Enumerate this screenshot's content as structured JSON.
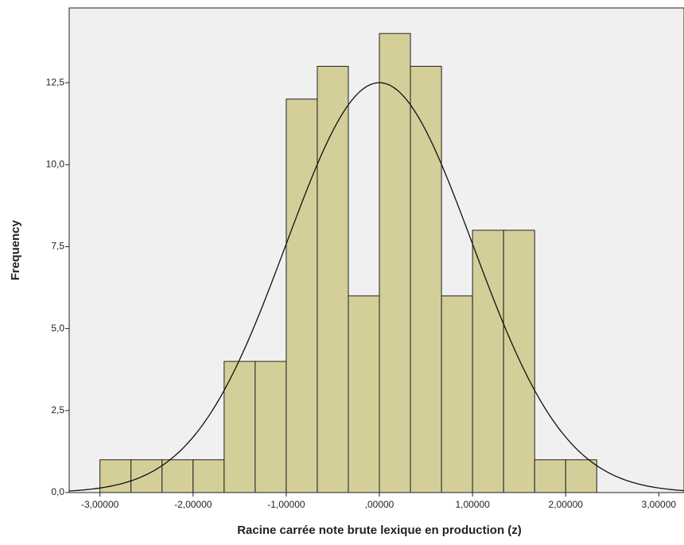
{
  "chart_data": {
    "type": "histogram",
    "x_label": "Racine carrée note brute lexique en production (z)",
    "y_label": "Frequency",
    "bins": [
      -3,
      -2.6667,
      -2.3333,
      -2,
      -1.6667,
      -1.3333,
      -1,
      -0.6667,
      -0.3333,
      0,
      0.3333,
      0.6667,
      1,
      1.3333,
      1.6667,
      2,
      2.3333
    ],
    "values": [
      1,
      1,
      1,
      1,
      4,
      4,
      12,
      13,
      6,
      14,
      13,
      6,
      8,
      8,
      1,
      1
    ],
    "color": "#d4cf99",
    "curve": {
      "mean": 0,
      "std": 1
    },
    "xlim": [
      -3.33,
      3.27
    ],
    "ylim": [
      0,
      14.78
    ],
    "xticks": [
      {
        "value": -3,
        "label": "-3,00000"
      },
      {
        "value": -2,
        "label": "-2,00000"
      },
      {
        "value": -1,
        "label": "-1,00000"
      },
      {
        "value": 0,
        "label": ",00000"
      },
      {
        "value": 1,
        "label": "1,00000"
      },
      {
        "value": 2,
        "label": "2,00000"
      },
      {
        "value": 3,
        "label": "3,00000"
      }
    ],
    "yticks": [
      {
        "value": 0,
        "label": "0,0"
      },
      {
        "value": 2.5,
        "label": "2,5"
      },
      {
        "value": 5,
        "label": "5,0"
      },
      {
        "value": 7.5,
        "label": "7,5"
      },
      {
        "value": 10,
        "label": "10,0"
      },
      {
        "value": 12.5,
        "label": "12,5"
      }
    ]
  }
}
